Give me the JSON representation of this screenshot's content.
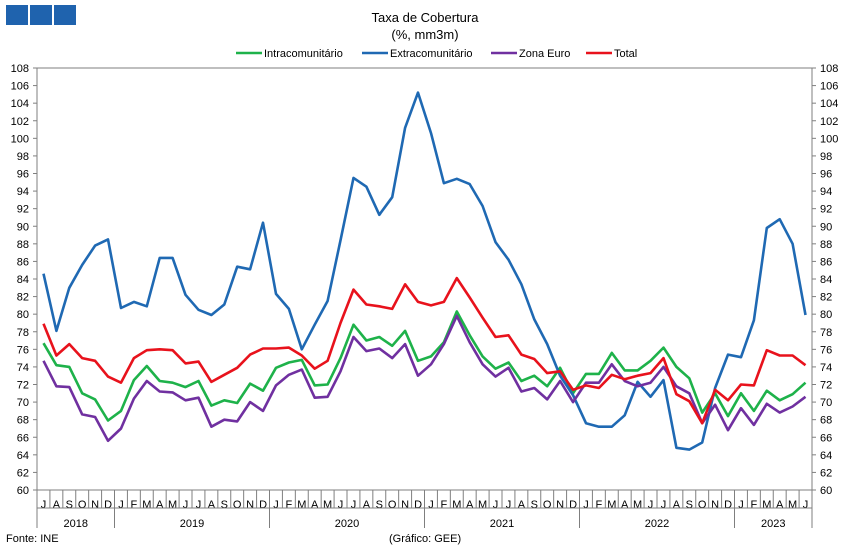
{
  "chart_data": {
    "type": "line",
    "title": "Taxa de Cobertura",
    "subtitle": "(%, mm3m)",
    "x": [
      "2018-07",
      "2018-08",
      "2018-09",
      "2018-10",
      "2018-11",
      "2018-12",
      "2019-01",
      "2019-02",
      "2019-03",
      "2019-04",
      "2019-05",
      "2019-06",
      "2019-07",
      "2019-08",
      "2019-09",
      "2019-10",
      "2019-11",
      "2019-12",
      "2020-01",
      "2020-02",
      "2020-03",
      "2020-04",
      "2020-05",
      "2020-06",
      "2020-07",
      "2020-08",
      "2020-09",
      "2020-10",
      "2020-11",
      "2020-12",
      "2021-01",
      "2021-02",
      "2021-03",
      "2021-04",
      "2021-05",
      "2021-06",
      "2021-07",
      "2021-08",
      "2021-09",
      "2021-10",
      "2021-11",
      "2021-12",
      "2022-01",
      "2022-02",
      "2022-03",
      "2022-04",
      "2022-05",
      "2022-06",
      "2022-07",
      "2022-08",
      "2022-09",
      "2022-10",
      "2022-11",
      "2022-12",
      "2023-01",
      "2023-02",
      "2023-03",
      "2023-04",
      "2023-05",
      "2023-06"
    ],
    "month_labels": [
      "J",
      "A",
      "S",
      "O",
      "N",
      "D",
      "J",
      "F",
      "M",
      "A",
      "M",
      "J",
      "J",
      "A",
      "S",
      "O",
      "N",
      "D",
      "J",
      "F",
      "M",
      "A",
      "M",
      "J",
      "J",
      "A",
      "S",
      "O",
      "N",
      "D",
      "J",
      "F",
      "M",
      "A",
      "M",
      "J",
      "J",
      "A",
      "S",
      "O",
      "N",
      "D",
      "J",
      "F",
      "M",
      "A",
      "M",
      "J",
      "J",
      "A",
      "S",
      "O",
      "N",
      "D",
      "J",
      "F",
      "M",
      "A",
      "M",
      "J"
    ],
    "year_labels": [
      "2018",
      "2019",
      "2020",
      "2021",
      "2022",
      "2023"
    ],
    "ylim": [
      60,
      108
    ],
    "yticks": [
      60,
      62,
      64,
      66,
      68,
      70,
      72,
      74,
      76,
      78,
      80,
      82,
      84,
      86,
      88,
      90,
      92,
      94,
      96,
      98,
      100,
      102,
      104,
      106,
      108
    ],
    "legend_position": "top",
    "grid": false,
    "series": [
      {
        "name": "Intracomunitário",
        "color": "#1eb24a",
        "values": [
          76.7,
          74.2,
          74.0,
          71.0,
          70.3,
          67.9,
          69.0,
          72.5,
          74.1,
          72.4,
          72.2,
          71.7,
          72.4,
          69.6,
          70.2,
          69.9,
          72.1,
          71.3,
          73.9,
          74.5,
          74.8,
          71.9,
          72.0,
          75.0,
          78.8,
          77.0,
          77.4,
          76.4,
          78.1,
          74.7,
          75.2,
          76.8,
          80.3,
          77.6,
          75.2,
          73.8,
          74.5,
          72.4,
          73.0,
          71.8,
          73.9,
          71.0,
          73.2,
          73.2,
          75.6,
          73.6,
          73.6,
          74.7,
          76.2,
          74.0,
          72.7,
          68.8,
          71.0,
          68.4,
          71.0,
          69.0,
          71.3,
          70.2,
          70.9,
          72.2
        ]
      },
      {
        "name": "Extracomunitário",
        "color": "#1f69b3",
        "values": [
          84.6,
          78.1,
          83.0,
          85.6,
          87.8,
          88.5,
          80.7,
          81.4,
          80.9,
          86.4,
          86.4,
          82.2,
          80.5,
          79.9,
          81.1,
          85.4,
          85.1,
          90.4,
          82.3,
          80.6,
          76.0,
          78.8,
          81.5,
          88.4,
          95.5,
          94.5,
          91.3,
          93.3,
          101.2,
          105.2,
          100.6,
          94.9,
          95.4,
          94.8,
          92.3,
          88.2,
          86.2,
          83.4,
          79.4,
          76.6,
          73.0,
          70.8,
          67.6,
          67.2,
          67.2,
          68.5,
          72.3,
          70.6,
          72.5,
          64.8,
          64.6,
          65.4,
          71.6,
          75.4,
          75.1,
          79.3,
          89.8,
          90.8,
          88.0,
          79.9
        ]
      },
      {
        "name": "Zona Euro",
        "color": "#7030a0",
        "values": [
          74.7,
          71.8,
          71.7,
          68.6,
          68.3,
          65.6,
          67.0,
          70.4,
          72.4,
          71.2,
          71.1,
          70.2,
          70.5,
          67.2,
          68.0,
          67.8,
          70.0,
          69.0,
          71.9,
          73.1,
          73.7,
          70.5,
          70.6,
          73.5,
          77.4,
          75.8,
          76.1,
          75.0,
          76.6,
          73.0,
          74.3,
          76.6,
          79.8,
          76.8,
          74.3,
          72.9,
          73.9,
          71.2,
          71.6,
          70.3,
          72.4,
          70.0,
          72.2,
          72.2,
          74.3,
          72.4,
          71.8,
          72.2,
          74.0,
          71.8,
          71.0,
          67.6,
          69.7,
          66.8,
          69.3,
          67.4,
          69.8,
          68.8,
          69.5,
          70.6
        ]
      },
      {
        "name": "Total",
        "color": "#e8121c",
        "values": [
          78.9,
          75.3,
          76.6,
          75.0,
          74.7,
          72.9,
          72.2,
          75.0,
          75.9,
          76.0,
          75.9,
          74.4,
          74.6,
          72.3,
          73.1,
          73.9,
          75.4,
          76.1,
          76.1,
          76.2,
          75.3,
          73.8,
          74.7,
          79.0,
          82.8,
          81.1,
          80.9,
          80.6,
          83.4,
          81.4,
          81.0,
          81.4,
          84.1,
          81.9,
          79.6,
          77.4,
          77.6,
          75.4,
          74.9,
          73.3,
          73.5,
          71.4,
          71.9,
          71.6,
          73.1,
          72.6,
          73.0,
          73.3,
          75.0,
          70.9,
          70.1,
          67.6,
          71.4,
          70.2,
          72.0,
          71.9,
          75.9,
          75.3,
          75.3,
          74.2
        ]
      }
    ]
  },
  "footer": {
    "source": "Fonte: INE",
    "credit": "(Gráfico: GEE)"
  }
}
